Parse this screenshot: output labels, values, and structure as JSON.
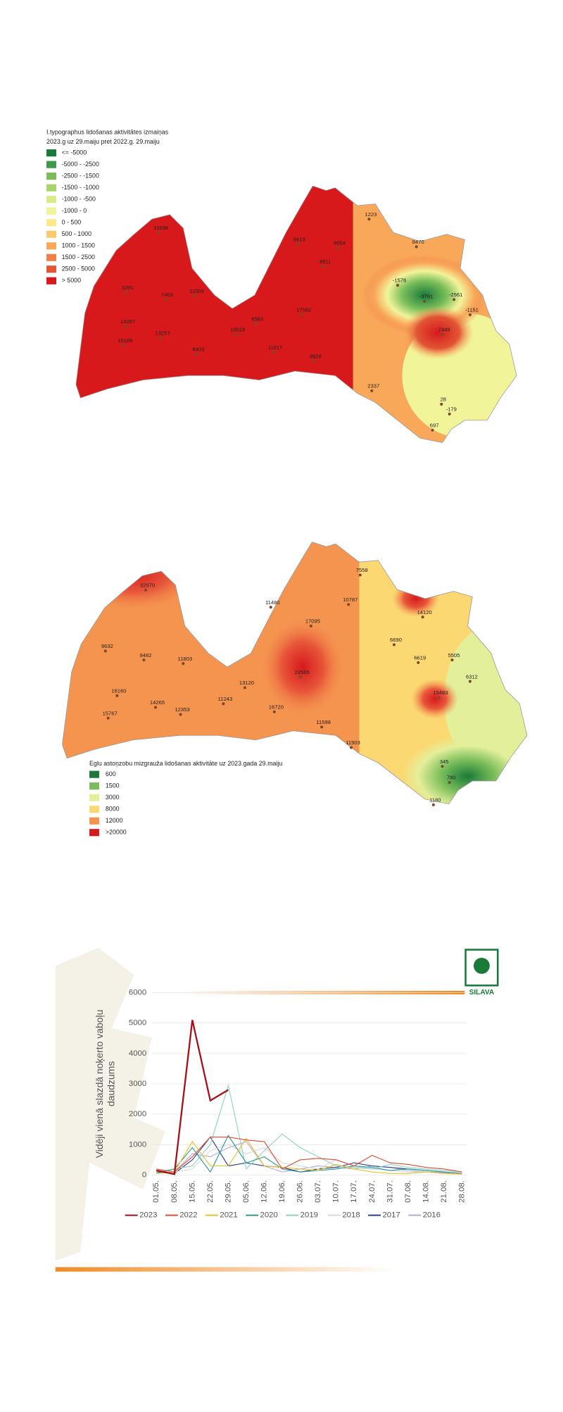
{
  "map1": {
    "title": [
      "I.typographus lidošanas aktivitātes izmaiņas",
      "2023.g uz 29.maiju pret 2022.g. 29.maiju"
    ],
    "legend": [
      {
        "label": "<= -5000",
        "color": "#1a7a3a"
      },
      {
        "label": "-5000 - -2500",
        "color": "#3d9a4a"
      },
      {
        "label": "-2500 - -1500",
        "color": "#79bd5a"
      },
      {
        "label": "-1500 - -1000",
        "color": "#a8d46a"
      },
      {
        "label": "-1000 - -500",
        "color": "#d8ea8a"
      },
      {
        "label": "-1000 - 0",
        "color": "#f2f49a"
      },
      {
        "label": "0 - 500",
        "color": "#fde98a"
      },
      {
        "label": "500 - 1000",
        "color": "#fbc770"
      },
      {
        "label": "1000 - 1500",
        "color": "#f9a85a"
      },
      {
        "label": "1500 - 2500",
        "color": "#f08048"
      },
      {
        "label": "2500 - 5000",
        "color": "#e25535"
      },
      {
        "label": "> 5000",
        "color": "#d7191c"
      }
    ],
    "points": [
      31698,
      6619,
      6054,
      1223,
      8470,
      8511,
      5391,
      7403,
      11003,
      -1576,
      -3761,
      -2561,
      -1151,
      14287,
      6583,
      17562,
      7449,
      15189,
      13257,
      10018,
      8403,
      11017,
      9928,
      2337,
      28,
      -179,
      697
    ]
  },
  "map2": {
    "title": "Eglu astoņzobu mizgrauža lidošanas aktivitāte uz 2023.gada 29.maiju",
    "legend": [
      {
        "label": "600",
        "color": "#1a7a3a"
      },
      {
        "label": "1500",
        "color": "#79bd5a"
      },
      {
        "label": "3000",
        "color": "#e4ef9a"
      },
      {
        "label": "8000",
        "color": "#fbd872"
      },
      {
        "label": "12000",
        "color": "#f4944f"
      },
      {
        "label": ">20000",
        "color": "#d7191c"
      }
    ],
    "points": [
      7558,
      32970,
      11480,
      10787,
      14120,
      17095,
      9632,
      6690,
      9482,
      11803,
      6619,
      5505,
      22565,
      13120,
      6312,
      16160,
      15483,
      11243,
      14265,
      16720,
      12353,
      15767,
      11598,
      11903,
      345,
      780,
      1180
    ]
  },
  "logo": "SILAVA",
  "chart_data": {
    "type": "line",
    "ylabel": [
      "Vidēji vienā slazdā noķerto vaboļu",
      "daudzums"
    ],
    "categories": [
      "01.05.",
      "08.05.",
      "15.05.",
      "22.05.",
      "29.05.",
      "05.06.",
      "12.06.",
      "19.06.",
      "26.06.",
      "03.07.",
      "10.07.",
      "17.07.",
      "24.07.",
      "31.07.",
      "07.08.",
      "14.08.",
      "21.08.",
      "28.08."
    ],
    "ylim": [
      0,
      6000
    ],
    "yticks": [
      0,
      1000,
      2000,
      3000,
      4000,
      5000,
      6000
    ],
    "grid": true,
    "legend": "bottom",
    "series": [
      {
        "name": "2023",
        "color": "#a50f15",
        "values": [
          150,
          30,
          5100,
          2450,
          2800,
          null,
          null,
          null,
          null,
          null,
          null,
          null,
          null,
          null,
          null,
          null,
          null,
          null
        ]
      },
      {
        "name": "2022",
        "color": "#e34a33",
        "values": [
          200,
          100,
          600,
          1250,
          1250,
          1150,
          1100,
          200,
          500,
          550,
          500,
          300,
          650,
          400,
          350,
          250,
          200,
          100
        ]
      },
      {
        "name": "2021",
        "color": "#e6c229",
        "values": [
          50,
          100,
          1100,
          300,
          300,
          1200,
          300,
          250,
          200,
          150,
          350,
          200,
          100,
          50,
          50,
          100,
          50,
          30
        ]
      },
      {
        "name": "2020",
        "color": "#2a9d8f",
        "values": [
          50,
          200,
          900,
          100,
          1300,
          400,
          600,
          200,
          100,
          150,
          200,
          300,
          250,
          150,
          200,
          150,
          100,
          50
        ]
      },
      {
        "name": "2019",
        "color": "#8fd3c8",
        "values": [
          100,
          200,
          300,
          1000,
          2950,
          200,
          800,
          1350,
          900,
          600,
          300,
          250,
          200,
          350,
          250,
          200,
          150,
          100
        ]
      },
      {
        "name": "2018",
        "color": "#d9d9d9",
        "values": [
          50,
          100,
          200,
          800,
          1000,
          700,
          900,
          400,
          300,
          200,
          500,
          300,
          200,
          150,
          100,
          100,
          50,
          50
        ]
      },
      {
        "name": "2017",
        "color": "#2c3e91",
        "values": [
          100,
          50,
          500,
          1250,
          300,
          400,
          300,
          250,
          100,
          200,
          250,
          400,
          300,
          250,
          200,
          150,
          100,
          50
        ]
      },
      {
        "name": "2016",
        "color": "#b8a9d9",
        "values": [
          50,
          100,
          700,
          600,
          900,
          1100,
          300,
          100,
          200,
          300,
          250,
          200,
          300,
          250,
          150,
          100,
          80,
          50
        ]
      }
    ]
  }
}
